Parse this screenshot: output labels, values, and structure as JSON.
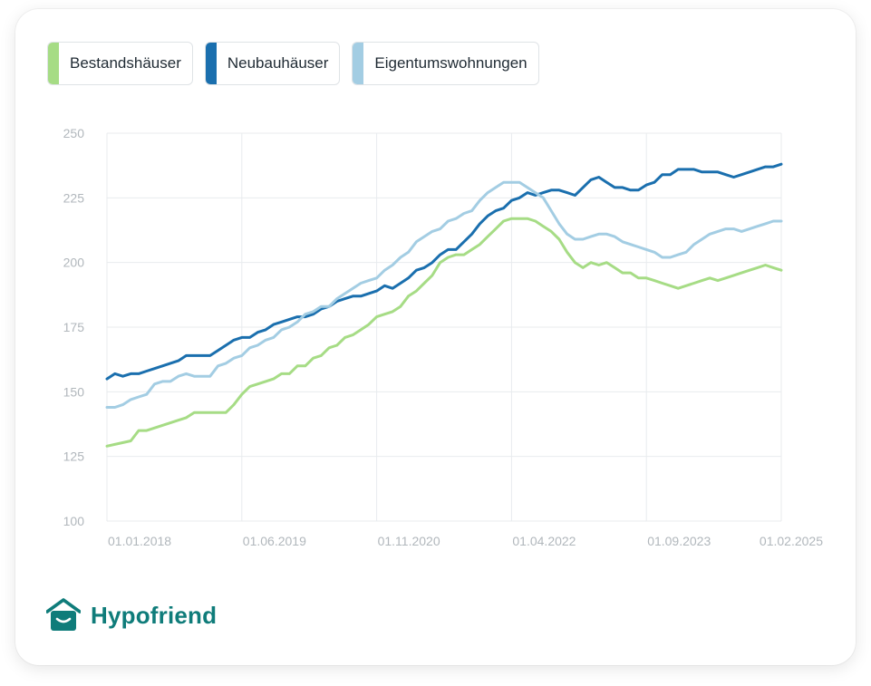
{
  "brand": {
    "name": "Hypofriend",
    "color": "#0f7c7a"
  },
  "chart_data": {
    "type": "line",
    "title": "",
    "xlabel": "",
    "ylabel": "",
    "ylim": [
      100,
      250
    ],
    "yticks": [
      100,
      125,
      150,
      175,
      200,
      225,
      250
    ],
    "x_tick_labels": [
      "01.01.2018",
      "01.06.2019",
      "01.11.2020",
      "01.04.2022",
      "01.09.2023",
      "01.02.2025"
    ],
    "x_tick_months": [
      0,
      17,
      34,
      51,
      68,
      85
    ],
    "x_months_total": 85,
    "grid": true,
    "legend": "top-left",
    "series": [
      {
        "name": "Bestandshäuser",
        "color": "#a6dc85",
        "points": [
          [
            0,
            129
          ],
          [
            3,
            131
          ],
          [
            4,
            135
          ],
          [
            5,
            135
          ],
          [
            8,
            138
          ],
          [
            9,
            139
          ],
          [
            10,
            140
          ],
          [
            11,
            142
          ],
          [
            14,
            142
          ],
          [
            15,
            142
          ],
          [
            16,
            145
          ],
          [
            17,
            149
          ],
          [
            18,
            152
          ],
          [
            20,
            154
          ],
          [
            21,
            155
          ],
          [
            22,
            157
          ],
          [
            23,
            157
          ],
          [
            24,
            160
          ],
          [
            25,
            160
          ],
          [
            26,
            163
          ],
          [
            27,
            164
          ],
          [
            28,
            167
          ],
          [
            29,
            168
          ],
          [
            30,
            171
          ],
          [
            31,
            172
          ],
          [
            32,
            174
          ],
          [
            33,
            176
          ],
          [
            34,
            179
          ],
          [
            35,
            180
          ],
          [
            36,
            181
          ],
          [
            37,
            183
          ],
          [
            38,
            187
          ],
          [
            39,
            189
          ],
          [
            40,
            192
          ],
          [
            41,
            195
          ],
          [
            42,
            200
          ],
          [
            43,
            202
          ],
          [
            44,
            203
          ],
          [
            45,
            203
          ],
          [
            46,
            205
          ],
          [
            47,
            207
          ],
          [
            48,
            210
          ],
          [
            49,
            213
          ],
          [
            50,
            216
          ],
          [
            51,
            217
          ],
          [
            52,
            217
          ],
          [
            53,
            217
          ],
          [
            54,
            216
          ],
          [
            55,
            214
          ],
          [
            56,
            212
          ],
          [
            57,
            209
          ],
          [
            58,
            204
          ],
          [
            59,
            200
          ],
          [
            60,
            198
          ],
          [
            61,
            200
          ],
          [
            62,
            199
          ],
          [
            63,
            200
          ],
          [
            64,
            198
          ],
          [
            65,
            196
          ],
          [
            66,
            196
          ],
          [
            67,
            194
          ],
          [
            68,
            194
          ],
          [
            69,
            193
          ],
          [
            70,
            192
          ],
          [
            71,
            191
          ],
          [
            72,
            190
          ],
          [
            73,
            191
          ],
          [
            74,
            192
          ],
          [
            75,
            193
          ],
          [
            76,
            194
          ],
          [
            77,
            193
          ],
          [
            78,
            194
          ],
          [
            79,
            195
          ],
          [
            80,
            196
          ],
          [
            81,
            197
          ],
          [
            82,
            198
          ],
          [
            83,
            199
          ],
          [
            84,
            198
          ],
          [
            85,
            197
          ]
        ]
      },
      {
        "name": "Neubauhäuser",
        "color": "#1a6fae",
        "points": [
          [
            0,
            155
          ],
          [
            1,
            157
          ],
          [
            2,
            156
          ],
          [
            3,
            157
          ],
          [
            4,
            157
          ],
          [
            5,
            158
          ],
          [
            6,
            159
          ],
          [
            7,
            160
          ],
          [
            8,
            161
          ],
          [
            9,
            162
          ],
          [
            10,
            164
          ],
          [
            13,
            164
          ],
          [
            14,
            166
          ],
          [
            15,
            168
          ],
          [
            16,
            170
          ],
          [
            17,
            171
          ],
          [
            18,
            171
          ],
          [
            19,
            173
          ],
          [
            20,
            174
          ],
          [
            21,
            176
          ],
          [
            22,
            177
          ],
          [
            23,
            178
          ],
          [
            24,
            179
          ],
          [
            25,
            179
          ],
          [
            26,
            180
          ],
          [
            27,
            182
          ],
          [
            28,
            183
          ],
          [
            29,
            185
          ],
          [
            30,
            186
          ],
          [
            31,
            187
          ],
          [
            32,
            187
          ],
          [
            33,
            188
          ],
          [
            34,
            189
          ],
          [
            35,
            191
          ],
          [
            36,
            190
          ],
          [
            37,
            192
          ],
          [
            38,
            194
          ],
          [
            39,
            197
          ],
          [
            40,
            198
          ],
          [
            41,
            200
          ],
          [
            42,
            203
          ],
          [
            43,
            205
          ],
          [
            44,
            205
          ],
          [
            45,
            208
          ],
          [
            46,
            211
          ],
          [
            47,
            215
          ],
          [
            48,
            218
          ],
          [
            49,
            220
          ],
          [
            50,
            221
          ],
          [
            51,
            224
          ],
          [
            52,
            225
          ],
          [
            53,
            227
          ],
          [
            54,
            226
          ],
          [
            55,
            227
          ],
          [
            56,
            228
          ],
          [
            57,
            228
          ],
          [
            58,
            227
          ],
          [
            59,
            226
          ],
          [
            60,
            229
          ],
          [
            61,
            232
          ],
          [
            62,
            233
          ],
          [
            63,
            231
          ],
          [
            64,
            229
          ],
          [
            65,
            229
          ],
          [
            66,
            228
          ],
          [
            67,
            228
          ],
          [
            68,
            230
          ],
          [
            69,
            231
          ],
          [
            70,
            234
          ],
          [
            71,
            234
          ],
          [
            72,
            236
          ],
          [
            73,
            236
          ],
          [
            74,
            236
          ],
          [
            75,
            235
          ],
          [
            76,
            235
          ],
          [
            77,
            235
          ],
          [
            78,
            234
          ],
          [
            79,
            233
          ],
          [
            80,
            234
          ],
          [
            81,
            235
          ],
          [
            82,
            236
          ],
          [
            83,
            237
          ],
          [
            84,
            237
          ],
          [
            85,
            238
          ]
        ]
      },
      {
        "name": "Eigentumswohnungen",
        "color": "#a3cde3",
        "points": [
          [
            0,
            144
          ],
          [
            1,
            144
          ],
          [
            2,
            145
          ],
          [
            3,
            147
          ],
          [
            4,
            148
          ],
          [
            5,
            149
          ],
          [
            6,
            153
          ],
          [
            7,
            154
          ],
          [
            8,
            154
          ],
          [
            9,
            156
          ],
          [
            10,
            157
          ],
          [
            11,
            156
          ],
          [
            12,
            156
          ],
          [
            13,
            156
          ],
          [
            14,
            160
          ],
          [
            15,
            161
          ],
          [
            16,
            163
          ],
          [
            17,
            164
          ],
          [
            18,
            167
          ],
          [
            19,
            168
          ],
          [
            20,
            170
          ],
          [
            21,
            171
          ],
          [
            22,
            174
          ],
          [
            23,
            175
          ],
          [
            24,
            177
          ],
          [
            25,
            180
          ],
          [
            26,
            181
          ],
          [
            27,
            183
          ],
          [
            28,
            183
          ],
          [
            29,
            186
          ],
          [
            30,
            188
          ],
          [
            31,
            190
          ],
          [
            32,
            192
          ],
          [
            33,
            193
          ],
          [
            34,
            194
          ],
          [
            35,
            197
          ],
          [
            36,
            199
          ],
          [
            37,
            202
          ],
          [
            38,
            204
          ],
          [
            39,
            208
          ],
          [
            40,
            210
          ],
          [
            41,
            212
          ],
          [
            42,
            213
          ],
          [
            43,
            216
          ],
          [
            44,
            217
          ],
          [
            45,
            219
          ],
          [
            46,
            220
          ],
          [
            47,
            224
          ],
          [
            48,
            227
          ],
          [
            49,
            229
          ],
          [
            50,
            231
          ],
          [
            51,
            231
          ],
          [
            52,
            231
          ],
          [
            53,
            229
          ],
          [
            54,
            227
          ],
          [
            55,
            225
          ],
          [
            56,
            220
          ],
          [
            57,
            215
          ],
          [
            58,
            211
          ],
          [
            59,
            209
          ],
          [
            60,
            209
          ],
          [
            61,
            210
          ],
          [
            62,
            211
          ],
          [
            63,
            211
          ],
          [
            64,
            210
          ],
          [
            65,
            208
          ],
          [
            66,
            207
          ],
          [
            67,
            206
          ],
          [
            68,
            205
          ],
          [
            69,
            204
          ],
          [
            70,
            202
          ],
          [
            71,
            202
          ],
          [
            72,
            203
          ],
          [
            73,
            204
          ],
          [
            74,
            207
          ],
          [
            75,
            209
          ],
          [
            76,
            211
          ],
          [
            77,
            212
          ],
          [
            78,
            213
          ],
          [
            79,
            213
          ],
          [
            80,
            212
          ],
          [
            81,
            213
          ],
          [
            82,
            214
          ],
          [
            83,
            215
          ],
          [
            84,
            216
          ],
          [
            85,
            216
          ]
        ]
      }
    ]
  }
}
